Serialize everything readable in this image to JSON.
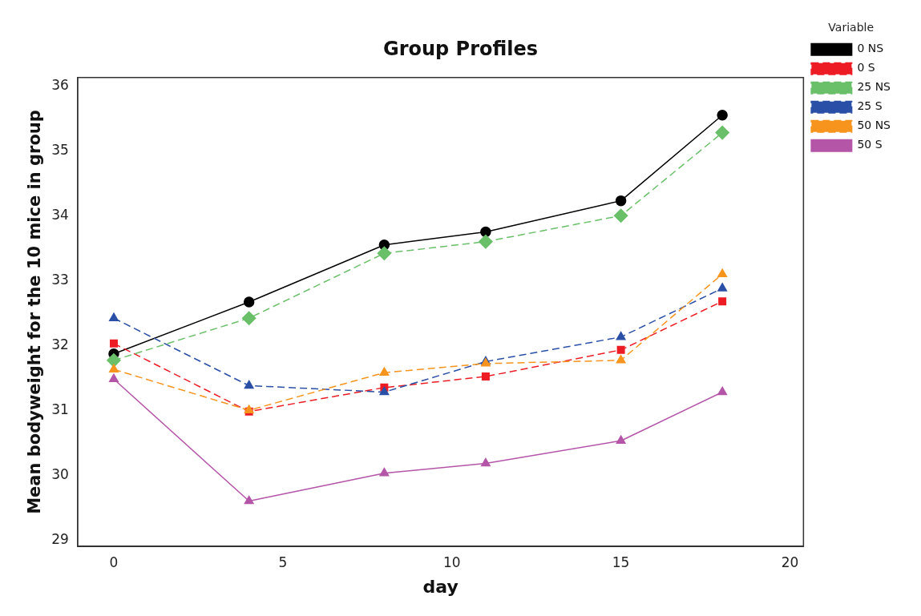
{
  "chart_data": {
    "type": "line",
    "title": "Group Profiles",
    "xlabel": "day",
    "ylabel": "Mean bodyweight for the 10 mice in group",
    "legend_title": "Variable",
    "legend": "right",
    "grid": false,
    "x": [
      0,
      4,
      8,
      11,
      15,
      18
    ],
    "xlim": [
      -1.07,
      20.4
    ],
    "xticks": [
      0,
      5,
      10,
      15,
      20
    ],
    "ylim": [
      28.9,
      36.13
    ],
    "yticks": [
      29,
      30,
      31,
      32,
      33,
      34,
      35,
      36
    ],
    "series": [
      {
        "name": "0 NS",
        "color": "#000000",
        "marker": "circle",
        "line_style": "solid",
        "values": [
          31.87,
          32.67,
          33.55,
          33.75,
          34.23,
          35.55
        ]
      },
      {
        "name": "0 S",
        "color": "#ed1c24",
        "marker": "square",
        "line_style": "dashed",
        "values": [
          32.03,
          30.98,
          31.35,
          31.52,
          31.93,
          32.68
        ]
      },
      {
        "name": "25 NS",
        "color": "#6abf69",
        "marker": "diamond",
        "line_style": "dashed",
        "values": [
          31.77,
          32.42,
          33.42,
          33.6,
          34.0,
          35.28
        ]
      },
      {
        "name": "25 S",
        "color": "#2a4fa6",
        "marker": "triangle",
        "line_style": "dashed",
        "values": [
          32.42,
          31.38,
          31.28,
          31.75,
          32.13,
          32.88
        ]
      },
      {
        "name": "50 NS",
        "color": "#f7941d",
        "marker": "triangle",
        "line_style": "dashed",
        "values": [
          31.63,
          31.0,
          31.58,
          31.72,
          31.77,
          33.1
        ]
      },
      {
        "name": "50 S",
        "color": "#b455a8",
        "marker": "triangle",
        "line_style": "solid",
        "values": [
          31.48,
          29.6,
          30.03,
          30.18,
          30.53,
          31.28
        ]
      }
    ]
  }
}
